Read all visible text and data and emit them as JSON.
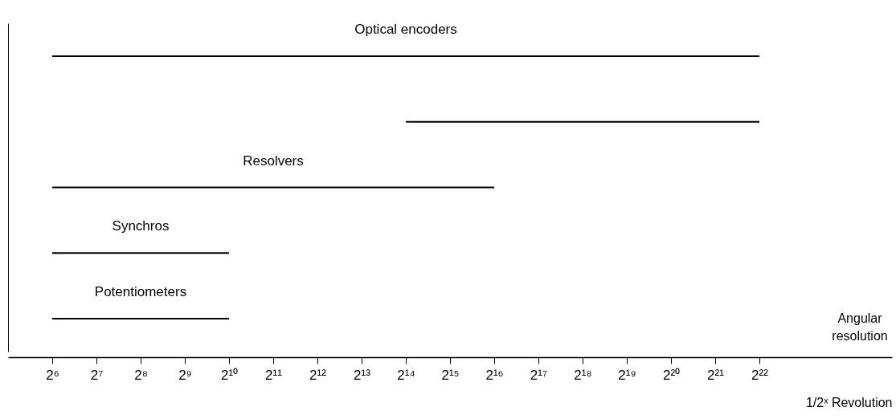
{
  "chart_data": {
    "type": "bar",
    "orientation": "horizontal",
    "log": "x",
    "categories": [
      "Optical encoders",
      null,
      "Resolvers",
      "Synchros",
      "Potentiometers"
    ],
    "base": [
      64,
      16384,
      64,
      64,
      64
    ],
    "values": [
      4194240,
      4177920,
      65472,
      960,
      960
    ],
    "color": "#000000",
    "xlim": [
      32,
      33554432
    ],
    "xticks": [
      {
        "value": 64,
        "label": "2⁶"
      },
      {
        "value": 128,
        "label": "2⁷"
      },
      {
        "value": 256,
        "label": "2⁸"
      },
      {
        "value": 512,
        "label": "2⁹"
      },
      {
        "value": 1024,
        "label": "2¹⁰"
      },
      {
        "value": 2048,
        "label": "2¹¹"
      },
      {
        "value": 4096,
        "label": "2¹²"
      },
      {
        "value": 8192,
        "label": "2¹³"
      },
      {
        "value": 16384,
        "label": "2¹⁴"
      },
      {
        "value": 32768,
        "label": "2¹⁵"
      },
      {
        "value": 65536,
        "label": "2¹⁶"
      },
      {
        "value": 131072,
        "label": "2¹⁷"
      },
      {
        "value": 262144,
        "label": "2¹⁸"
      },
      {
        "value": 524288,
        "label": "2¹⁹"
      },
      {
        "value": 1048576,
        "label": "2²⁰"
      },
      {
        "value": 2097152,
        "label": "2²¹"
      },
      {
        "value": 4194304,
        "label": "2²²"
      }
    ],
    "xlabel": "1/2ˣ Revolution",
    "annotations": [
      "Angular resolution"
    ]
  }
}
